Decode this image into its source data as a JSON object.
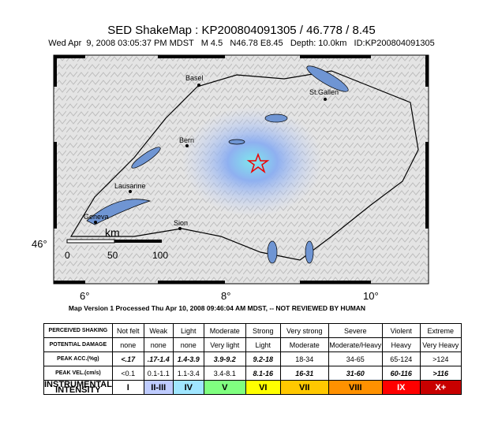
{
  "header": {
    "title": "SED ShakeMap : KP200804091305 / 46.778 / 8.45",
    "subtitle": "Wed Apr  9, 2008 03:05:37 PM MDST   M 4.5   N46.78 E8.45   Depth: 10.0km   ID:KP200804091305"
  },
  "map": {
    "lat_label": "46°",
    "lon_labels": [
      "6°",
      "8°",
      "10°"
    ],
    "cities": [
      "Basel",
      "St.Gallen",
      "Bern",
      "Lausanne",
      "Geneva",
      "Sion"
    ],
    "scale": {
      "unit": "km",
      "ticks": [
        "0",
        "50",
        "100"
      ]
    }
  },
  "footer": {
    "processed": "Map Version 1 Processed Thu Apr 10, 2008 09:46:04 AM MDST, -- NOT REVIEWED BY HUMAN"
  },
  "table": {
    "rows": [
      [
        "PERCEIVED SHAKING",
        "Not felt",
        "Weak",
        "Light",
        "Moderate",
        "Strong",
        "Very strong",
        "Severe",
        "Violent",
        "Extreme"
      ],
      [
        "POTENTIAL DAMAGE",
        "none",
        "none",
        "none",
        "Very light",
        "Light",
        "Moderate",
        "Moderate/Heavy",
        "Heavy",
        "Very Heavy"
      ],
      [
        "PEAK ACC.(%g)",
        "<.17",
        ".17-1.4",
        "1.4-3.9",
        "3.9-9.2",
        "9.2-18",
        "18-34",
        "34-65",
        "65-124",
        ">124"
      ],
      [
        "PEAK VEL.(cm/s)",
        "<0.1",
        "0.1-1.1",
        "1.1-3.4",
        "3.4-8.1",
        "8.1-16",
        "16-31",
        "31-60",
        "60-116",
        ">116"
      ],
      [
        "INSTRUMENTAL INTENSITY",
        "I",
        "II-III",
        "IV",
        "V",
        "VI",
        "VII",
        "VIII",
        "IX",
        "X+"
      ]
    ]
  }
}
